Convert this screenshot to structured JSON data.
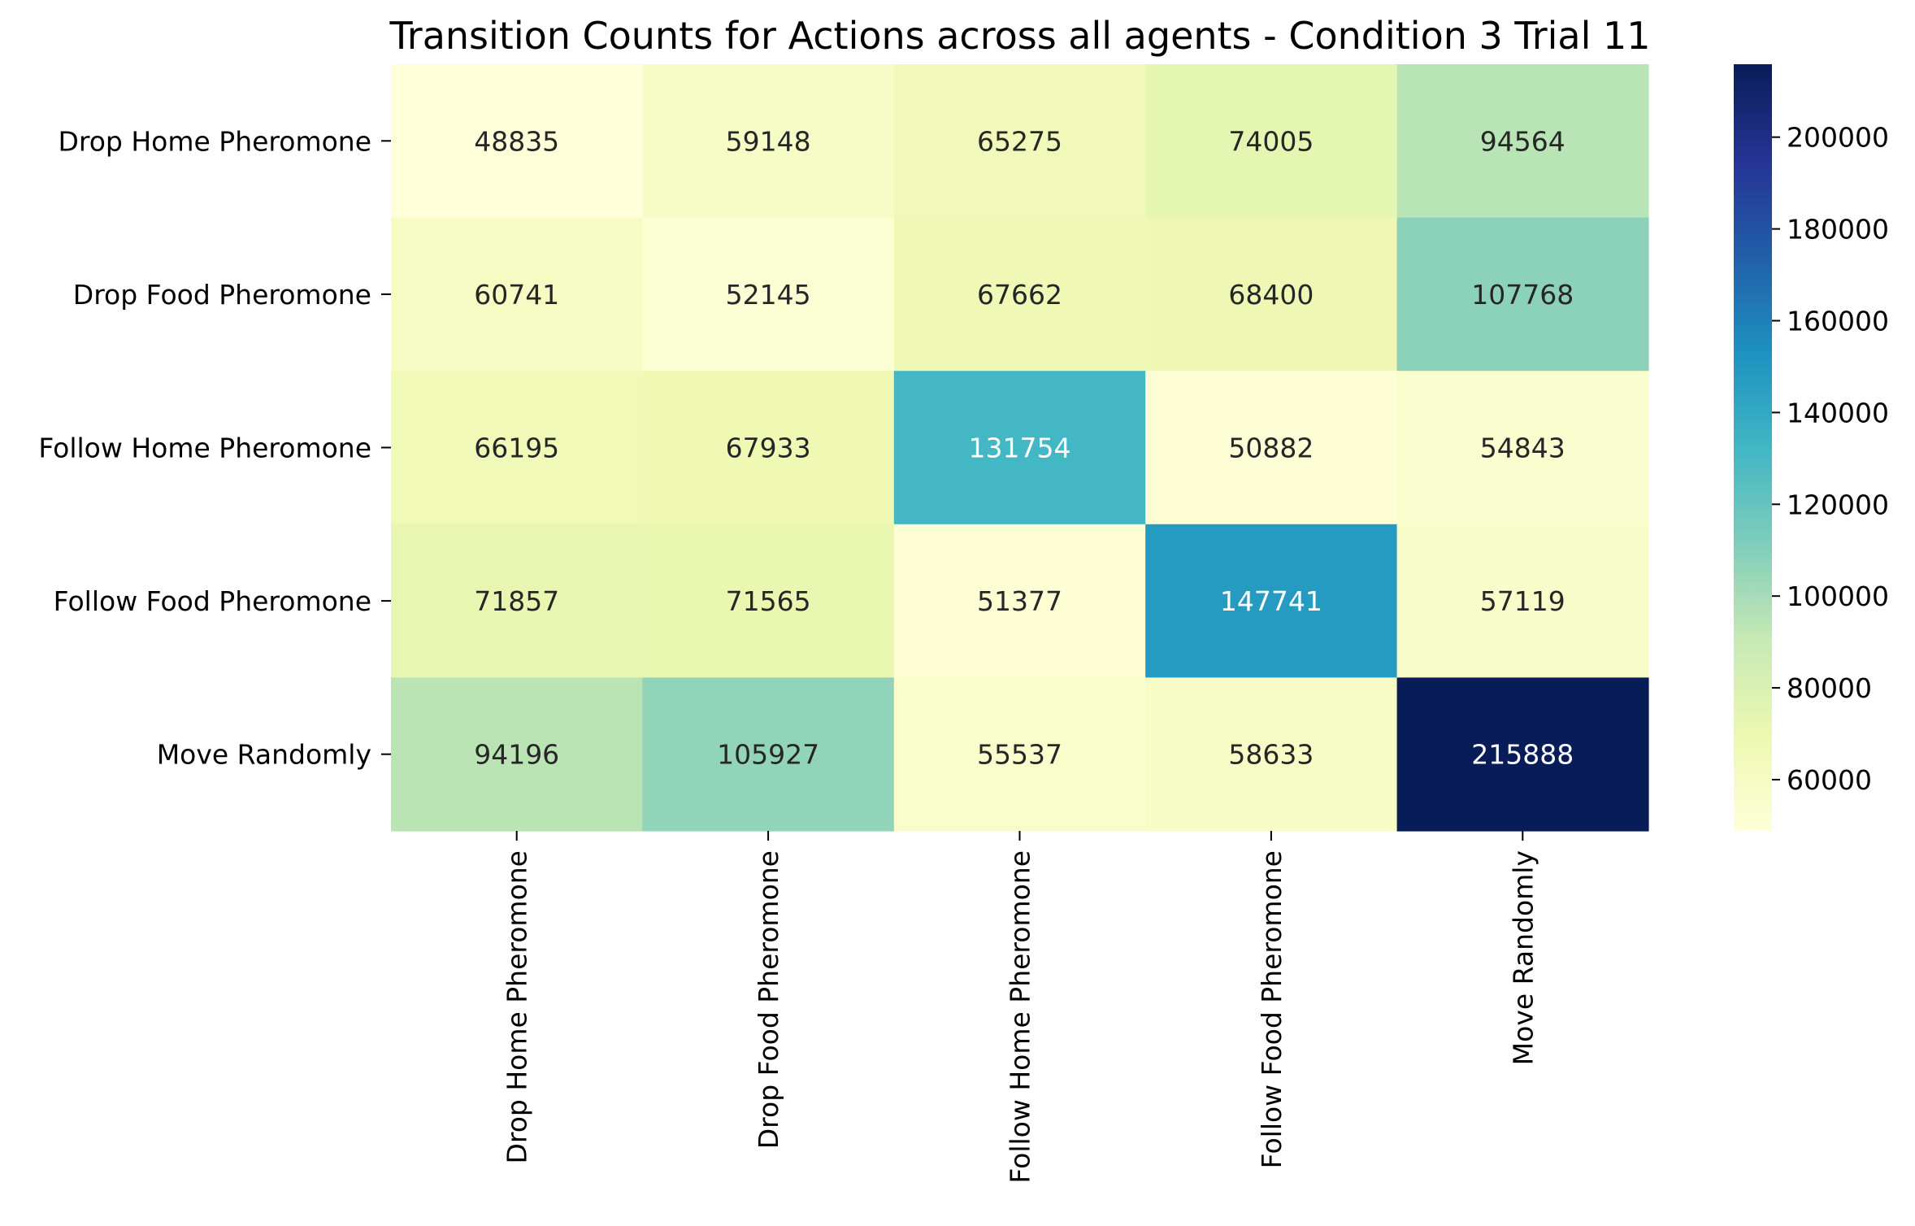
{
  "chart_data": {
    "type": "heatmap",
    "title": "Transition Counts for Actions across all agents - Condition 3 Trial 11",
    "row_labels": [
      "Drop Home Pheromone",
      "Drop Food Pheromone",
      "Follow Home Pheromone",
      "Follow Food Pheromone",
      "Move Randomly"
    ],
    "col_labels": [
      "Drop Home Pheromone",
      "Drop Food Pheromone",
      "Follow Home Pheromone",
      "Follow Food Pheromone",
      "Move Randomly"
    ],
    "values": [
      [
        48835,
        59148,
        65275,
        74005,
        94564
      ],
      [
        60741,
        52145,
        67662,
        68400,
        107768
      ],
      [
        66195,
        67933,
        131754,
        50882,
        54843
      ],
      [
        71857,
        71565,
        51377,
        147741,
        57119
      ],
      [
        94196,
        105927,
        55537,
        58633,
        215888
      ]
    ],
    "colormap": "YlGnBu",
    "colorbar": {
      "range": [
        48835,
        215888
      ],
      "ticks": [
        60000,
        80000,
        100000,
        120000,
        140000,
        160000,
        180000,
        200000
      ],
      "tick_labels": [
        "60000",
        "80000",
        "100000",
        "120000",
        "140000",
        "160000",
        "180000",
        "200000"
      ]
    },
    "colors": {
      "low_text": "#262626",
      "high_text": "#ffffff"
    }
  }
}
